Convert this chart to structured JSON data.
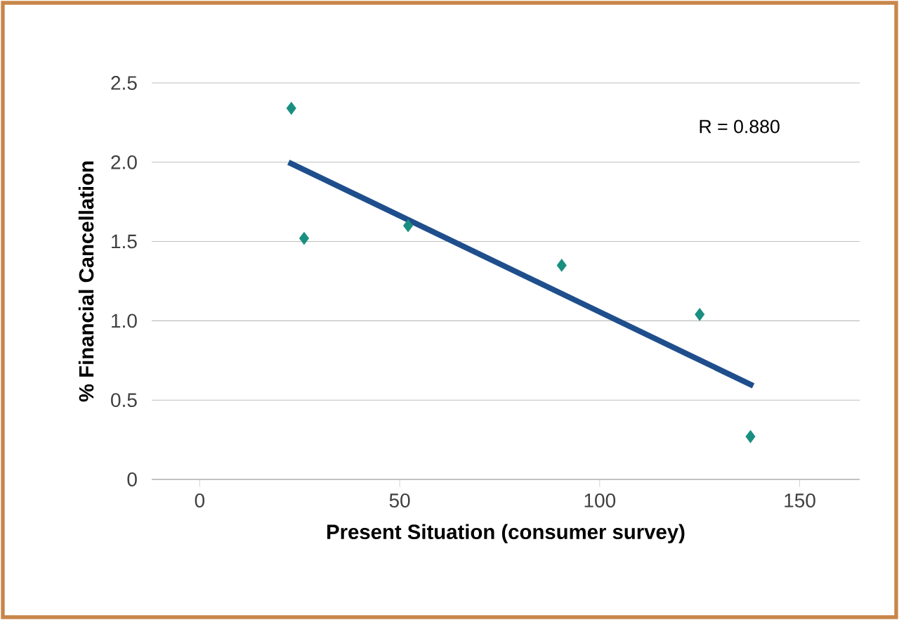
{
  "chart_data": {
    "type": "scatter",
    "xlabel": "Present Situation (consumer survey)",
    "ylabel": "% Financial Cancellation",
    "xlim": [
      -12,
      165
    ],
    "ylim": [
      0,
      2.5
    ],
    "xticks": [
      0,
      50,
      100,
      150
    ],
    "yticks": [
      0,
      0.5,
      {
        "value": 1,
        "label": "1.0"
      },
      1.5,
      {
        "value": 2,
        "label": "2.0"
      },
      2.5
    ],
    "grid": "y",
    "annotations": [
      "R = 0.880"
    ],
    "series": [
      {
        "marker": "diamond",
        "color": "#1a8f80",
        "x": [
          22.9,
          26.1,
          52.1,
          90.5,
          125,
          137.7
        ],
        "values": [
          2.34,
          1.52,
          1.6,
          1.35,
          1.04,
          0.27
        ]
      },
      {
        "type": "line",
        "marker": "none",
        "color": "#1f4e8c",
        "x": [
          22.2,
          138.4
        ],
        "values": [
          2.0,
          0.59
        ]
      }
    ]
  }
}
